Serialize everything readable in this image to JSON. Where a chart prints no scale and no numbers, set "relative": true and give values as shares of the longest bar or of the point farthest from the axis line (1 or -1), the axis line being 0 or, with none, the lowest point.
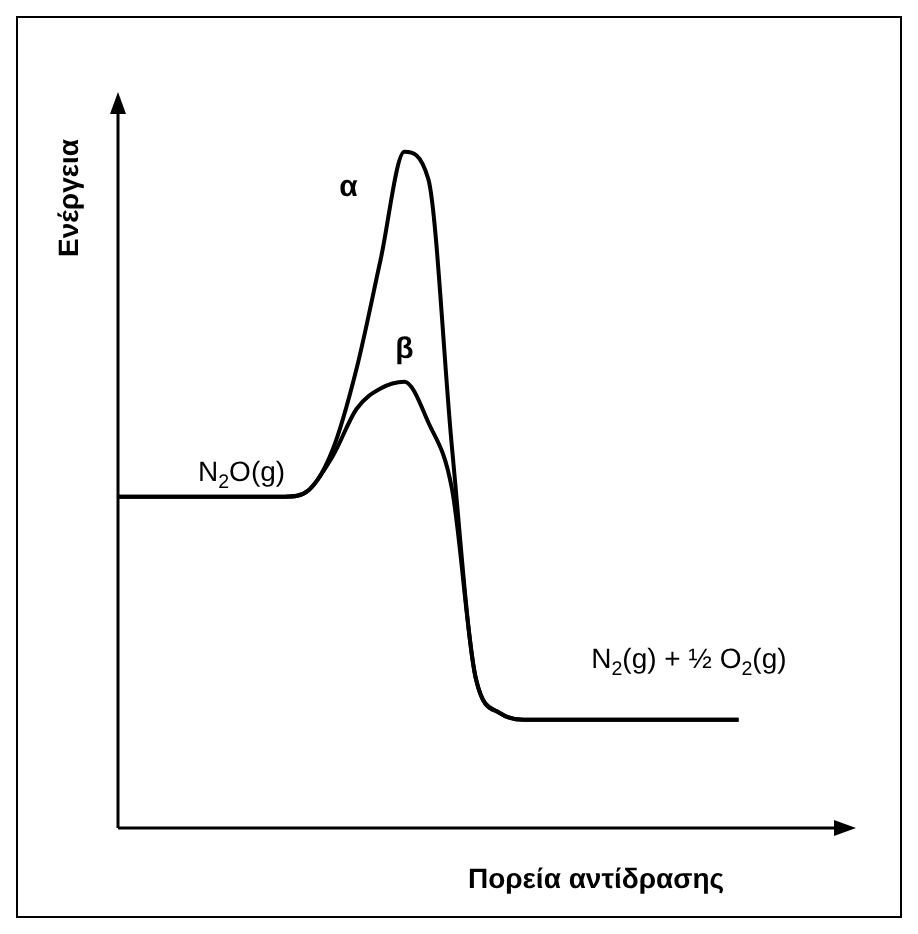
{
  "chart_data": {
    "type": "line",
    "relative": true,
    "xlabel": "Πορεία αντίδρασης",
    "ylabel": "Ενέργεια",
    "legend": false,
    "marker": "none",
    "line_style": "solid",
    "categories": [
      null,
      null,
      null,
      null,
      null,
      null,
      null,
      null,
      null,
      null,
      null,
      null,
      null,
      null,
      null,
      null,
      null,
      null,
      null,
      null,
      null,
      null,
      null,
      null,
      null,
      null,
      null,
      null,
      null,
      null,
      null
    ],
    "series": [
      {
        "name": "α",
        "color": "#000000",
        "values": [
          0.49,
          0.49,
          0.49,
          0.49,
          0.49,
          0.49,
          0.49,
          0.49,
          0.5,
          0.56,
          0.68,
          0.84,
          1,
          0.96,
          0.56,
          0.22,
          0.17,
          0.16,
          0.16,
          0.16,
          0.16,
          0.16,
          0.16,
          0.16,
          0.16,
          0.16,
          0.16,
          null,
          null,
          null,
          null
        ]
      },
      {
        "name": "β",
        "color": "#000000",
        "values": [
          0.49,
          0.49,
          0.49,
          0.49,
          0.49,
          0.49,
          0.49,
          0.49,
          0.5,
          0.55,
          0.62,
          0.65,
          0.66,
          0.6,
          0.5,
          0.22,
          0.17,
          0.16,
          0.16,
          0.16,
          0.16,
          0.16,
          0.16,
          0.16,
          0.16,
          0.16,
          0.16,
          null,
          null,
          null,
          null
        ]
      }
    ],
    "annotations": [
      "N$_{2}$O(g)",
      "N$_{2}$(g) + ½ O$_{2}$(g)"
    ]
  }
}
